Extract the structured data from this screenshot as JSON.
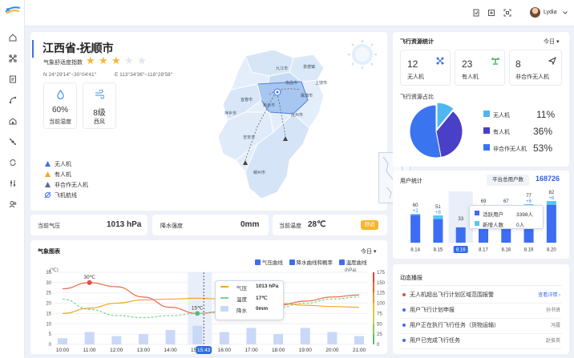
{
  "user": {
    "name": "Lydia"
  },
  "location": {
    "title": "江西省-抚顺市",
    "comfort_label": "气象舒适度指数",
    "comfort_stars": 3,
    "comfort_max": 5,
    "lat": "N 24°29'14\"~30°04'41\"",
    "lon": "E 113°34'36\"~118°28'58\""
  },
  "humidity": {
    "value": "60%",
    "label": "当前湿度"
  },
  "wind": {
    "value": "8级",
    "label": "西风"
  },
  "legend": {
    "items": [
      {
        "label": "无人机",
        "color": "#3d6df2"
      },
      {
        "label": "有人机",
        "color": "#f5a623"
      },
      {
        "label": "非合作无人机",
        "color": "#5b6b86"
      }
    ],
    "route": "飞机航线"
  },
  "stats": {
    "pressure_label": "当前气压",
    "pressure_value": "1013 hPa",
    "rain_label": "降水强度",
    "rain_value": "0mm",
    "temp_label": "当前温度",
    "temp_value": "28℃",
    "badge": "舒适"
  },
  "weather_chart": {
    "title": "气象图表",
    "period": "今日",
    "legend": [
      "气压曲线",
      "降水曲线和概率",
      "温度曲线"
    ],
    "unit_left": "(℃)",
    "unit_right": "(hPa)",
    "y_left": [
      35,
      30,
      25,
      20,
      15,
      10,
      5,
      0
    ],
    "y_right": [
      175,
      150,
      125,
      100,
      75,
      50,
      25,
      0
    ],
    "max_label": "30℃",
    "min_label": "15℃",
    "highlight": "15:43",
    "chart_data": {
      "type": "line",
      "x": [
        "10:00",
        "11:00",
        "12:00",
        "13:00",
        "14:00",
        "15:00",
        "16:00",
        "17:00",
        "18:00",
        "19:00",
        "20:00",
        "21:00"
      ],
      "ylim": [
        0,
        35
      ],
      "y2lim": [
        0,
        175
      ],
      "series": [
        {
          "name": "气压",
          "axis": "right",
          "values": [
            75,
            88,
            100,
            108,
            110,
            112,
            110,
            106,
            100,
            95,
            92,
            90
          ]
        },
        {
          "name": "温度",
          "axis": "left",
          "values": [
            27,
            30,
            28,
            23,
            18,
            15,
            16,
            17,
            19,
            21,
            23,
            24
          ]
        },
        {
          "name": "湿度",
          "axis": "left",
          "values": [
            22,
            17,
            14,
            13,
            14,
            15,
            16,
            17,
            18,
            20,
            22,
            23
          ]
        },
        {
          "name": "降水",
          "axis": "left",
          "type": "bar",
          "values": [
            3,
            6,
            4,
            5,
            7,
            9,
            6,
            8,
            5,
            8,
            6,
            4
          ]
        }
      ]
    },
    "tooltip": {
      "rows": [
        {
          "label": "气压",
          "value": "1013 hPa"
        },
        {
          "label": "温度",
          "value": "17℃"
        },
        {
          "label": "降水",
          "value": "0mm"
        }
      ]
    }
  },
  "flight": {
    "title": "飞行资源统计",
    "period": "今日",
    "tiles": [
      {
        "value": "12",
        "label": "无人机",
        "icon": "drone-icon"
      },
      {
        "value": "23",
        "label": "有人机",
        "icon": "plane-icon"
      },
      {
        "value": "8",
        "label": "非合作无人机",
        "icon": "send-icon"
      }
    ],
    "ratio_title": "飞行资源占比",
    "chart_data": {
      "type": "pie",
      "series": [
        {
          "name": "无人机",
          "value": 11,
          "color": "#4fb6f2"
        },
        {
          "name": "有人机",
          "value": 36,
          "color": "#4a3fc7"
        },
        {
          "name": "非合作无人机",
          "value": 53,
          "color": "#3a74ee"
        }
      ]
    },
    "ratio_labels": [
      "11%",
      "36%",
      "53%"
    ]
  },
  "users": {
    "title": "用户统计",
    "total_label": "平台总用户数",
    "total_value": "168726",
    "chart_data": {
      "type": "bar",
      "categories": [
        "8.14",
        "8.15",
        "8.16",
        "8.17",
        "8.18",
        "8.19",
        "8.20"
      ],
      "series": [
        {
          "name": "活跃用户",
          "values": [
            60,
            51,
            33,
            69,
            67,
            77,
            82
          ]
        },
        {
          "name": "新增人数",
          "values": [
            2,
            8,
            0,
            2,
            4,
            6,
            8
          ]
        }
      ]
    },
    "top_labels": [
      "60",
      "51",
      "33",
      "69",
      "67",
      "77",
      "82"
    ],
    "inc_labels": [
      "+2",
      "+8",
      "",
      "+2",
      "+4",
      "+6",
      "+8"
    ],
    "highlight": "8.16",
    "tooltip": {
      "rows": [
        {
          "label": "活跃用户",
          "value": "3398人"
        },
        {
          "label": "新增人数",
          "value": "0人"
        }
      ]
    }
  },
  "news": {
    "title": "动态播报",
    "items": [
      {
        "text": "无人机超出飞行计划区域范围报警",
        "tag": "查看详情 ›",
        "color": "#e84a4a"
      },
      {
        "text": "用户飞行计划申报",
        "tag": "孙书贤",
        "color": "#3d6df2"
      },
      {
        "text": "用户正在执行飞行任务（货物运输）",
        "tag": "冯露",
        "color": "#3d6df2"
      },
      {
        "text": "用户已完成飞行任务",
        "tag": "赵俊英",
        "color": "#3d6df2"
      }
    ]
  },
  "map": {
    "cities": [
      "九江市",
      "景德镇",
      "上饶市",
      "南昌市",
      "鹰潭市",
      "宜春市",
      "抚州市",
      "新余市",
      "萍乡市",
      "吉安市",
      "赣州市"
    ]
  }
}
